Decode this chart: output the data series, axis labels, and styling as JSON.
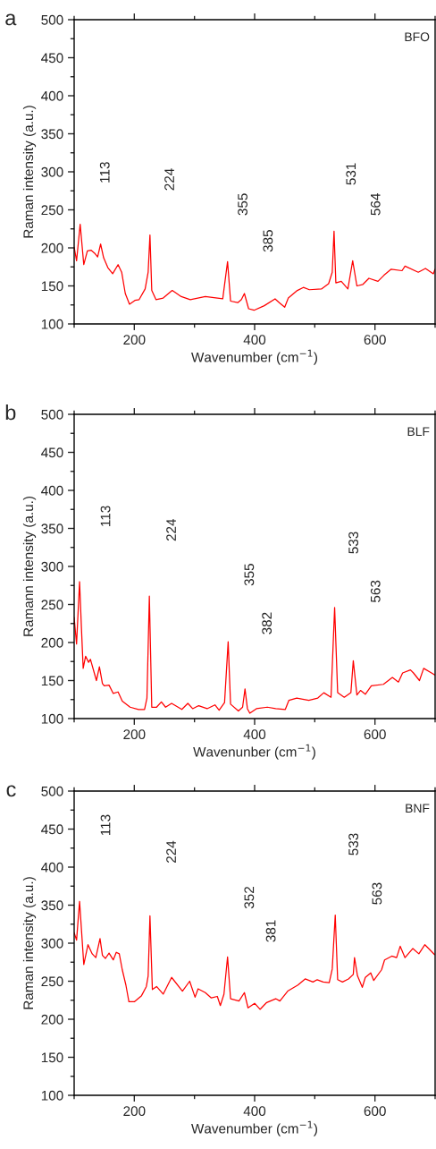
{
  "chart_data": [
    {
      "type": "line",
      "title": "a",
      "xlabel": "Wavenumber (cm$^{−1}$)",
      "ylabel": "Raman intensity (a.u.)",
      "xlim": [
        100,
        700
      ],
      "ylim": [
        100,
        500
      ],
      "xticks": [
        200,
        400,
        600
      ],
      "yticks": [
        100,
        150,
        200,
        250,
        300,
        350,
        400,
        450,
        500
      ],
      "grid": false,
      "legend": false,
      "annotations": [
        "BFO",
        "113",
        "224",
        "355",
        "385",
        "531",
        "564"
      ],
      "series": [
        {
          "color": "#ff0000",
          "x": [
            100,
            104,
            110,
            116,
            122,
            128,
            134,
            139,
            144,
            149,
            156,
            164,
            173,
            179,
            185,
            192,
            201,
            208,
            218,
            223,
            226,
            229,
            236,
            248,
            263,
            278,
            293,
            318,
            347,
            355,
            360,
            372,
            378,
            383,
            390,
            399,
            416,
            434,
            441,
            450,
            456,
            471,
            481,
            491,
            511,
            523,
            529,
            532,
            535,
            544,
            555,
            563,
            570,
            580,
            590,
            605,
            615,
            627,
            645,
            650,
            672,
            684,
            697,
            700
          ],
          "values": [
            201,
            183,
            231,
            178,
            196,
            197,
            193,
            188,
            205,
            187,
            174,
            166,
            178,
            168,
            140,
            126,
            131,
            132,
            146,
            168,
            217,
            144,
            132,
            134,
            144,
            136,
            132,
            136,
            133,
            182,
            130,
            128,
            132,
            140,
            120,
            118,
            124,
            133,
            128,
            122,
            134,
            144,
            148,
            145,
            146,
            153,
            168,
            222,
            154,
            156,
            146,
            183,
            150,
            152,
            160,
            156,
            164,
            172,
            170,
            176,
            168,
            173,
            166,
            172
          ]
        }
      ]
    },
    {
      "type": "line",
      "title": "b",
      "xlabel": "Wavenunber (cm$^{−1}$)",
      "ylabel": "Ramann intensity (a.u.)",
      "xlim": [
        100,
        700
      ],
      "ylim": [
        100,
        500
      ],
      "xticks": [
        200,
        400,
        600
      ],
      "yticks": [
        100,
        150,
        200,
        250,
        300,
        350,
        400,
        450,
        500
      ],
      "grid": false,
      "legend": false,
      "annotations": [
        "BLF",
        "113",
        "224",
        "355",
        "382",
        "533",
        "563"
      ],
      "series": [
        {
          "color": "#ff0000",
          "x": [
            100,
            104,
            109,
            112,
            115,
            119,
            124,
            127,
            137,
            142,
            147,
            150,
            158,
            165,
            173,
            180,
            193,
            207,
            217,
            221,
            225,
            229,
            237,
            245,
            252,
            262,
            279,
            289,
            297,
            307,
            321,
            334,
            341,
            350,
            356,
            360,
            373,
            380,
            384,
            388,
            392,
            403,
            421,
            435,
            451,
            457,
            470,
            490,
            505,
            515,
            527,
            533,
            538,
            549,
            560,
            564,
            570,
            576,
            584,
            594,
            614,
            629,
            639,
            646,
            659,
            664,
            674,
            681,
            694,
            700
          ],
          "values": [
            233,
            198,
            280,
            221,
            166,
            182,
            174,
            178,
            150,
            168,
            146,
            143,
            144,
            133,
            135,
            123,
            115,
            112,
            112,
            127,
            261,
            115,
            115,
            122,
            115,
            120,
            112,
            120,
            113,
            117,
            113,
            118,
            111,
            121,
            201,
            119,
            110,
            115,
            139,
            113,
            107,
            113,
            115,
            113,
            112,
            124,
            127,
            124,
            127,
            134,
            128,
            246,
            134,
            128,
            134,
            176,
            131,
            137,
            132,
            143,
            145,
            154,
            148,
            160,
            164,
            160,
            150,
            166,
            160,
            157
          ]
        }
      ]
    },
    {
      "type": "line",
      "title": "c",
      "xlabel": "Wavenumber (cm$^{−1}$)",
      "ylabel": "Raman intensity (a.u.)",
      "xlim": [
        100,
        700
      ],
      "ylim": [
        100,
        500
      ],
      "xticks": [
        200,
        400,
        600
      ],
      "yticks": [
        100,
        150,
        200,
        250,
        300,
        350,
        400,
        450,
        500
      ],
      "grid": false,
      "legend": false,
      "annotations": [
        "BNF",
        "113",
        "224",
        "352",
        "381",
        "533",
        "563"
      ],
      "series": [
        {
          "color": "#ff0000",
          "x": [
            100,
            104,
            109,
            116,
            123,
            130,
            136,
            143,
            147,
            152,
            158,
            165,
            170,
            175,
            180,
            186,
            191,
            200,
            212,
            220,
            223,
            226,
            230,
            237,
            248,
            262,
            280,
            292,
            301,
            306,
            318,
            328,
            338,
            343,
            349,
            355,
            360,
            374,
            383,
            389,
            400,
            409,
            420,
            435,
            442,
            455,
            472,
            484,
            497,
            504,
            514,
            524,
            529,
            534,
            538,
            546,
            556,
            564,
            566,
            571,
            579,
            584,
            593,
            598,
            611,
            616,
            628,
            636,
            642,
            650,
            663,
            673,
            683,
            693,
            699
          ],
          "values": [
            314,
            304,
            355,
            272,
            298,
            286,
            281,
            306,
            284,
            280,
            287,
            278,
            288,
            286,
            265,
            245,
            223,
            223,
            231,
            243,
            257,
            336,
            239,
            243,
            233,
            255,
            237,
            250,
            229,
            240,
            235,
            228,
            230,
            218,
            233,
            282,
            227,
            224,
            235,
            215,
            221,
            213,
            222,
            227,
            224,
            237,
            245,
            253,
            249,
            252,
            249,
            248,
            266,
            337,
            252,
            249,
            253,
            259,
            281,
            257,
            242,
            255,
            261,
            251,
            265,
            278,
            283,
            281,
            296,
            281,
            293,
            286,
            298,
            290,
            285
          ]
        }
      ]
    }
  ]
}
